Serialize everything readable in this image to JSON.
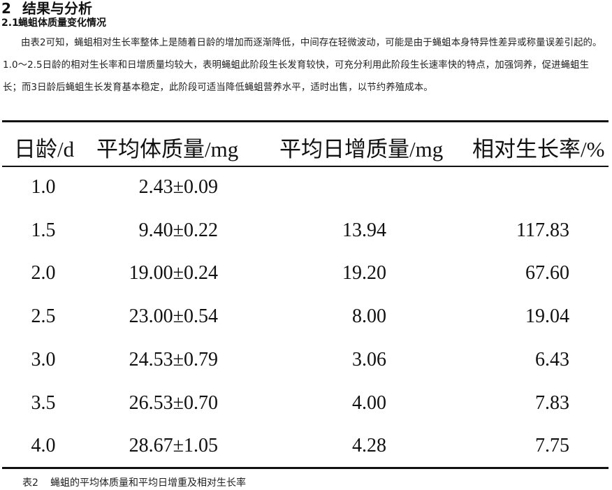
{
  "section": {
    "number": "2",
    "title": "结果与分析"
  },
  "subsection": {
    "number": "2.1",
    "title": "蝇蛆体质量变化情况"
  },
  "paragraph": "由表2可知，蝇蛆相对生长率整体上是随着日龄的增加而逐渐降低，中间存在轻微波动，可能是由于蝇蛆本身特异性差异或称量误差引起的。1.0～2.5日龄的相对生长率和日增质量均较大，表明蝇蛆此阶段生长发育较快，可充分利用此阶段生长速率快的特点，加强饲养，促进蝇蛆生长；而3日龄后蝇蛆生长发育基本稳定，此阶段可适当降低蝇蛆营养水平，适时出售，以节约养殖成本。",
  "table": {
    "headers": [
      "日龄/d",
      "平均体质量/mg",
      "平均日增质量/mg",
      "相对生长率/%"
    ],
    "rows": [
      [
        "1.0",
        "2.43±0.09",
        "",
        ""
      ],
      [
        "1.5",
        "9.40±0.22",
        "13.94",
        "117.83"
      ],
      [
        "2.0",
        "19.00±0.24",
        "19.20",
        "67.60"
      ],
      [
        "2.5",
        "23.00±0.54",
        "8.00",
        "19.04"
      ],
      [
        "3.0",
        "24.53±0.79",
        "3.06",
        "6.43"
      ],
      [
        "3.5",
        "26.53±0.70",
        "4.00",
        "7.83"
      ],
      [
        "4.0",
        "28.67±1.05",
        "4.28",
        "7.75"
      ]
    ]
  },
  "caption": {
    "number": "表2",
    "text": "蝇蛆的平均体质量和平均日增重及相对生长率"
  }
}
